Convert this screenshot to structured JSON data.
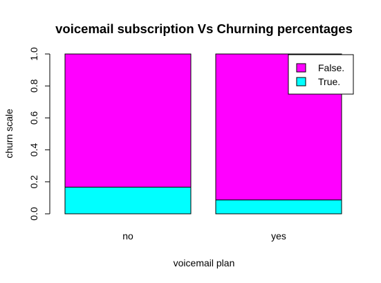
{
  "chart_data": {
    "type": "bar",
    "stacked": true,
    "title": "voicemail subscription Vs Churning percentages",
    "xlabel": "voicemail plan",
    "ylabel": "churn scale",
    "categories": [
      "no",
      "yes"
    ],
    "series": [
      {
        "name": "True.",
        "color": "#00ffff",
        "values": [
          0.167,
          0.087
        ]
      },
      {
        "name": "False.",
        "color": "#ff00ff",
        "values": [
          0.833,
          0.913
        ]
      }
    ],
    "ylim": [
      0,
      1
    ],
    "yticks": [
      "0.0",
      "0.2",
      "0.4",
      "0.6",
      "0.8",
      "1.0"
    ],
    "legend": {
      "position": "top-right",
      "entries": [
        "False.",
        "True."
      ]
    },
    "grid": false
  }
}
